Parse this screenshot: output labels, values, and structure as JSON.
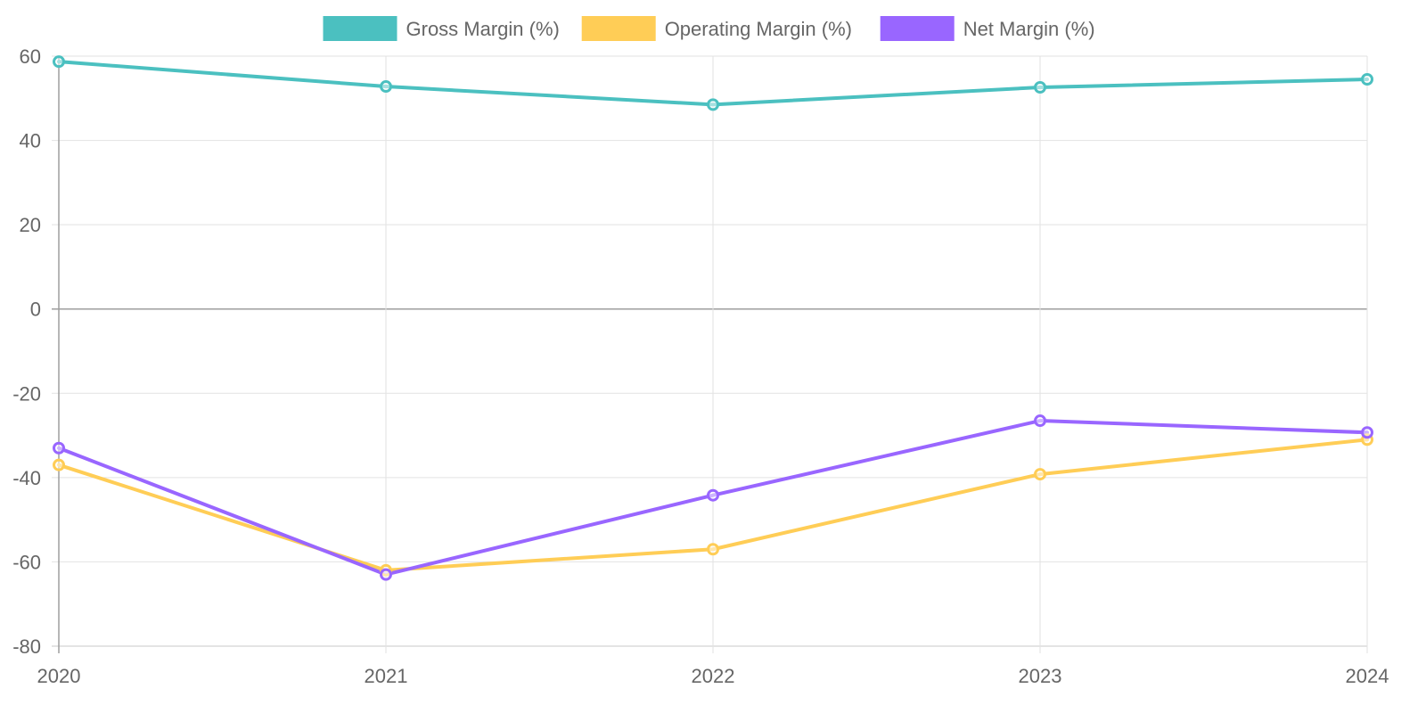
{
  "chart_data": {
    "type": "line",
    "title": "",
    "xlabel": "",
    "ylabel": "",
    "categories": [
      "2020",
      "2021",
      "2022",
      "2023",
      "2024"
    ],
    "ylim": [
      -80,
      60
    ],
    "yticks": [
      60,
      40,
      20,
      0,
      -20,
      -40,
      -60,
      -80
    ],
    "grid": true,
    "legend_position": "top-center",
    "series": [
      {
        "name": "Gross Margin (%)",
        "color": "#4bc0c0",
        "values": [
          58.7,
          52.8,
          48.5,
          52.6,
          54.5
        ]
      },
      {
        "name": "Operating Margin (%)",
        "color": "#ffcd56",
        "values": [
          -37.0,
          -62.0,
          -57.0,
          -39.2,
          -31.0
        ]
      },
      {
        "name": "Net Margin (%)",
        "color": "#9966ff",
        "values": [
          -33.0,
          -63.0,
          -44.2,
          -26.5,
          -29.3
        ]
      }
    ]
  }
}
